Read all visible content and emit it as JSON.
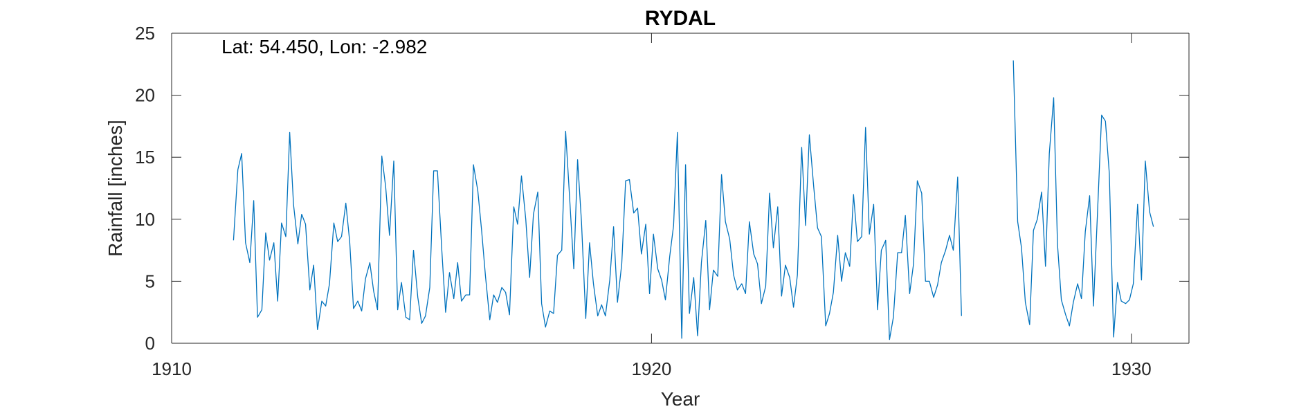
{
  "chart_data": {
    "type": "line",
    "title": "RYDAL",
    "annotation": "Lat: 54.450, Lon: -2.982",
    "xlabel": "Year",
    "ylabel": "Rainfall [inches]",
    "xlim": [
      1910,
      1931.2
    ],
    "ylim": [
      0,
      25
    ],
    "xticks": [
      1910,
      1920,
      1930
    ],
    "yticks": [
      0,
      5,
      10,
      15,
      20,
      25
    ],
    "grid": false,
    "colors": {
      "line": "#0072BD",
      "axes": "#262626"
    },
    "series": [
      {
        "x": [
          1911.29,
          1911.38,
          1911.46,
          1911.54,
          1911.63,
          1911.71,
          1911.79,
          1911.88,
          1911.96,
          1912.04,
          1912.13,
          1912.21,
          1912.29,
          1912.38,
          1912.46,
          1912.54,
          1912.63,
          1912.71,
          1912.79,
          1912.88,
          1912.96,
          1913.04,
          1913.13,
          1913.21,
          1913.29,
          1913.38,
          1913.46,
          1913.54,
          1913.63,
          1913.71,
          1913.79,
          1913.88,
          1913.96,
          1914.04,
          1914.13,
          1914.21,
          1914.29,
          1914.38,
          1914.46,
          1914.54,
          1914.63,
          1914.71,
          1914.79,
          1914.88,
          1914.96,
          1915.04,
          1915.13,
          1915.21,
          1915.29,
          1915.38,
          1915.46,
          1915.54,
          1915.63,
          1915.71,
          1915.79,
          1915.88,
          1915.96,
          1916.04,
          1916.13,
          1916.21,
          1916.29,
          1916.38,
          1916.46,
          1916.54,
          1916.63,
          1916.71,
          1916.79,
          1916.88,
          1916.96,
          1917.04,
          1917.13,
          1917.21,
          1917.29,
          1917.38,
          1917.46,
          1917.54,
          1917.63,
          1917.71,
          1917.79,
          1917.88,
          1917.96,
          1918.04,
          1918.13,
          1918.21,
          1918.29,
          1918.38,
          1918.46,
          1918.54,
          1918.63,
          1918.71,
          1918.79,
          1918.88,
          1918.96,
          1919.04,
          1919.13,
          1919.21,
          1919.29,
          1919.38,
          1919.46,
          1919.54,
          1919.63,
          1919.71,
          1919.79,
          1919.88,
          1919.96,
          1920.04,
          1920.13,
          1920.21,
          1920.29,
          1920.38,
          1920.46,
          1920.54,
          1920.63,
          1920.71,
          1920.79,
          1920.88,
          1920.96,
          1921.04,
          1921.13,
          1921.21,
          1921.29,
          1921.38,
          1921.46,
          1921.54,
          1921.63,
          1921.71,
          1921.79,
          1921.88,
          1921.96,
          1922.04,
          1922.13,
          1922.21,
          1922.29,
          1922.38,
          1922.46,
          1922.54,
          1922.63,
          1922.71,
          1922.79,
          1922.88,
          1922.96,
          1923.04,
          1923.13,
          1923.21,
          1923.29,
          1923.38,
          1923.46,
          1923.54,
          1923.63,
          1923.71,
          1923.79,
          1923.88,
          1923.96,
          1924.04,
          1924.13,
          1924.21,
          1924.29,
          1924.38,
          1924.46,
          1924.54,
          1924.63,
          1924.71,
          1924.79,
          1924.88,
          1924.96,
          1925.04,
          1925.13,
          1925.21,
          1925.29,
          1925.38,
          1925.46,
          1925.54,
          1925.63,
          1925.71,
          1925.79,
          1925.88,
          1925.96,
          1926.04,
          1926.13,
          1926.21,
          1926.29,
          1926.38,
          1926.46
        ],
        "y": [
          8.3,
          14.0,
          15.3,
          8.1,
          6.5,
          11.5,
          2.1,
          2.7,
          8.9,
          6.7,
          8.1,
          3.4,
          9.7,
          8.6,
          17.0,
          11.2,
          8.0,
          10.4,
          9.6,
          4.3,
          6.3,
          1.1,
          3.4,
          3.0,
          4.8,
          9.7,
          8.2,
          8.6,
          11.3,
          8.2,
          2.8,
          3.4,
          2.6,
          5.2,
          6.5,
          4.2,
          2.7,
          15.1,
          12.6,
          8.7,
          14.7,
          2.7,
          4.9,
          2.1,
          1.9,
          7.5,
          3.7,
          1.6,
          2.2,
          4.5,
          13.9,
          13.9,
          7.5,
          2.5,
          5.7,
          3.6,
          6.5,
          3.4,
          3.9,
          3.9,
          14.4,
          12.3,
          9.1,
          5.4,
          1.9,
          3.9,
          3.3,
          4.5,
          4.1,
          2.3,
          11.0,
          9.6,
          13.5,
          10.0,
          5.3,
          10.4,
          12.2,
          3.2,
          1.3,
          2.6,
          2.4,
          7.1,
          7.5,
          17.1,
          12.0,
          6.0,
          14.8,
          9.8,
          2.0,
          8.1,
          4.8,
          2.2,
          3.1,
          2.2,
          5.1,
          9.4,
          3.3,
          6.4,
          13.1,
          13.2,
          10.5,
          10.9,
          7.2,
          9.6,
          4.0,
          8.8,
          6.0,
          5.1,
          3.5,
          7.0,
          9.5,
          17.0,
          0.4,
          14.4,
          2.4,
          5.3,
          0.6,
          6.5,
          9.9,
          2.7,
          5.9,
          5.4,
          13.6,
          9.8,
          8.4,
          5.5,
          4.3,
          4.8,
          4.0,
          9.8,
          7.2,
          6.4,
          3.2,
          4.6,
          12.1,
          7.7,
          11.0,
          3.8,
          6.3,
          5.3,
          2.9,
          5.5,
          15.8,
          9.5,
          16.8,
          12.6,
          9.3,
          8.6,
          1.4,
          2.4,
          4.1,
          8.7,
          5.0,
          7.3,
          6.2,
          12.0,
          8.2,
          8.6,
          17.4,
          8.8,
          11.2,
          2.7,
          7.5,
          8.3,
          0.3,
          2.1,
          7.3,
          7.3,
          10.3,
          4.0,
          6.4,
          13.1,
          12.1,
          5.0,
          5.0,
          3.7,
          4.7,
          6.5,
          7.5,
          8.7,
          7.5,
          13.4,
          2.2
        ]
      },
      {
        "x": [
          1927.54,
          1927.63,
          1927.71,
          1927.79,
          1927.88,
          1927.96,
          1928.04,
          1928.13,
          1928.21,
          1928.29,
          1928.38,
          1928.46,
          1928.54,
          1928.63,
          1928.71,
          1928.79,
          1928.88,
          1928.96,
          1929.04,
          1929.13,
          1929.21,
          1929.29,
          1929.38,
          1929.46,
          1929.54,
          1929.63,
          1929.71,
          1929.79,
          1929.88,
          1929.96,
          1930.04,
          1930.13,
          1930.21,
          1930.29,
          1930.38,
          1930.46
        ],
        "y": [
          22.8,
          9.8,
          7.7,
          3.3,
          1.5,
          9.1,
          10.0,
          12.2,
          6.2,
          15.3,
          19.8,
          8.0,
          3.5,
          2.3,
          1.4,
          3.3,
          4.8,
          3.6,
          9.0,
          11.9,
          3.0,
          10.2,
          18.4,
          17.9,
          13.7,
          0.5,
          4.9,
          3.4,
          3.2,
          3.5,
          4.8,
          11.2,
          5.1,
          14.7,
          10.6,
          9.4
        ]
      }
    ]
  }
}
